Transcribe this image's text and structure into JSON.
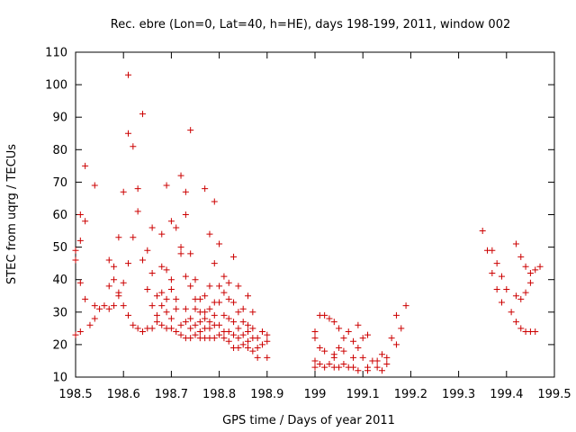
{
  "chart_data": {
    "type": "scatter",
    "title": "Rec. ebre (Lon=0, Lat=40, h=HE), days 198-199, 2011, window 002",
    "xlabel": "GPS time / Days of year 2011",
    "ylabel": "STEC from uqrg / TECUs",
    "xlim": [
      198.5,
      199.5
    ],
    "ylim": [
      10,
      110
    ],
    "xticks": [
      "198.5",
      "198.6",
      "198.7",
      "198.8",
      "198.9",
      "199",
      "199.1",
      "199.2",
      "199.3",
      "199.4",
      "199.5"
    ],
    "yticks": [
      "10",
      "20",
      "30",
      "40",
      "50",
      "60",
      "70",
      "80",
      "90",
      "100",
      "110"
    ],
    "grid": false,
    "marker": "+",
    "color": "#cc0000",
    "points": [
      [
        198.5,
        49
      ],
      [
        198.5,
        46
      ],
      [
        198.5,
        23
      ],
      [
        198.51,
        60
      ],
      [
        198.51,
        52
      ],
      [
        198.51,
        39
      ],
      [
        198.51,
        24
      ],
      [
        198.52,
        75
      ],
      [
        198.52,
        58
      ],
      [
        198.52,
        34
      ],
      [
        198.53,
        26
      ],
      [
        198.54,
        69
      ],
      [
        198.54,
        32
      ],
      [
        198.54,
        28
      ],
      [
        198.55,
        31
      ],
      [
        198.56,
        32
      ],
      [
        198.57,
        46
      ],
      [
        198.57,
        38
      ],
      [
        198.57,
        31
      ],
      [
        198.58,
        44
      ],
      [
        198.58,
        40
      ],
      [
        198.58,
        32
      ],
      [
        198.59,
        53
      ],
      [
        198.59,
        36
      ],
      [
        198.59,
        35
      ],
      [
        198.6,
        67
      ],
      [
        198.6,
        39
      ],
      [
        198.6,
        32
      ],
      [
        198.61,
        103
      ],
      [
        198.61,
        85
      ],
      [
        198.61,
        45
      ],
      [
        198.61,
        29
      ],
      [
        198.62,
        81
      ],
      [
        198.62,
        53
      ],
      [
        198.62,
        26
      ],
      [
        198.63,
        68
      ],
      [
        198.63,
        61
      ],
      [
        198.63,
        25
      ],
      [
        198.64,
        91
      ],
      [
        198.64,
        46
      ],
      [
        198.64,
        24
      ],
      [
        198.65,
        49
      ],
      [
        198.65,
        37
      ],
      [
        198.65,
        25
      ],
      [
        198.66,
        56
      ],
      [
        198.66,
        42
      ],
      [
        198.66,
        32
      ],
      [
        198.66,
        25
      ],
      [
        198.67,
        35
      ],
      [
        198.67,
        29
      ],
      [
        198.67,
        27
      ],
      [
        198.68,
        54
      ],
      [
        198.68,
        44
      ],
      [
        198.68,
        36
      ],
      [
        198.68,
        32
      ],
      [
        198.68,
        26
      ],
      [
        198.69,
        69
      ],
      [
        198.69,
        43
      ],
      [
        198.69,
        34
      ],
      [
        198.69,
        30
      ],
      [
        198.69,
        25
      ],
      [
        198.7,
        58
      ],
      [
        198.7,
        40
      ],
      [
        198.7,
        37
      ],
      [
        198.7,
        28
      ],
      [
        198.7,
        25
      ],
      [
        198.71,
        56
      ],
      [
        198.71,
        34
      ],
      [
        198.71,
        31
      ],
      [
        198.71,
        24
      ],
      [
        198.72,
        72
      ],
      [
        198.72,
        50
      ],
      [
        198.72,
        48
      ],
      [
        198.72,
        26
      ],
      [
        198.72,
        23
      ],
      [
        198.73,
        67
      ],
      [
        198.73,
        60
      ],
      [
        198.73,
        41
      ],
      [
        198.73,
        31
      ],
      [
        198.73,
        27
      ],
      [
        198.73,
        22
      ],
      [
        198.74,
        86
      ],
      [
        198.74,
        48
      ],
      [
        198.74,
        38
      ],
      [
        198.74,
        28
      ],
      [
        198.74,
        25
      ],
      [
        198.74,
        22
      ],
      [
        198.75,
        40
      ],
      [
        198.75,
        34
      ],
      [
        198.75,
        31
      ],
      [
        198.75,
        26
      ],
      [
        198.75,
        23
      ],
      [
        198.76,
        34
      ],
      [
        198.76,
        30
      ],
      [
        198.76,
        27
      ],
      [
        198.76,
        24
      ],
      [
        198.76,
        22
      ],
      [
        198.77,
        68
      ],
      [
        198.77,
        35
      ],
      [
        198.77,
        30
      ],
      [
        198.77,
        28
      ],
      [
        198.77,
        25
      ],
      [
        198.77,
        22
      ],
      [
        198.78,
        54
      ],
      [
        198.78,
        38
      ],
      [
        198.78,
        31
      ],
      [
        198.78,
        27
      ],
      [
        198.78,
        25
      ],
      [
        198.78,
        22
      ],
      [
        198.79,
        64
      ],
      [
        198.79,
        45
      ],
      [
        198.79,
        33
      ],
      [
        198.79,
        29
      ],
      [
        198.79,
        26
      ],
      [
        198.79,
        22
      ],
      [
        198.8,
        51
      ],
      [
        198.8,
        38
      ],
      [
        198.8,
        33
      ],
      [
        198.8,
        26
      ],
      [
        198.8,
        23
      ],
      [
        198.81,
        41
      ],
      [
        198.81,
        36
      ],
      [
        198.81,
        29
      ],
      [
        198.81,
        24
      ],
      [
        198.81,
        22
      ],
      [
        198.82,
        39
      ],
      [
        198.82,
        34
      ],
      [
        198.82,
        28
      ],
      [
        198.82,
        24
      ],
      [
        198.82,
        21
      ],
      [
        198.83,
        47
      ],
      [
        198.83,
        33
      ],
      [
        198.83,
        27
      ],
      [
        198.83,
        23
      ],
      [
        198.83,
        19
      ],
      [
        198.84,
        38
      ],
      [
        198.84,
        30
      ],
      [
        198.84,
        25
      ],
      [
        198.84,
        22
      ],
      [
        198.84,
        19
      ],
      [
        198.85,
        31
      ],
      [
        198.85,
        27
      ],
      [
        198.85,
        23
      ],
      [
        198.85,
        20
      ],
      [
        198.86,
        35
      ],
      [
        198.86,
        26
      ],
      [
        198.86,
        24
      ],
      [
        198.86,
        21
      ],
      [
        198.86,
        19
      ],
      [
        198.87,
        30
      ],
      [
        198.87,
        25
      ],
      [
        198.87,
        22
      ],
      [
        198.87,
        18
      ],
      [
        198.88,
        22
      ],
      [
        198.88,
        19
      ],
      [
        198.88,
        16
      ],
      [
        198.89,
        24
      ],
      [
        198.89,
        20
      ],
      [
        198.9,
        23
      ],
      [
        198.9,
        21
      ],
      [
        198.9,
        16
      ],
      [
        199.0,
        24
      ],
      [
        199.0,
        22
      ],
      [
        199.0,
        15
      ],
      [
        199.0,
        13
      ],
      [
        199.01,
        29
      ],
      [
        199.01,
        19
      ],
      [
        199.01,
        14
      ],
      [
        199.02,
        29
      ],
      [
        199.02,
        18
      ],
      [
        199.02,
        13
      ],
      [
        199.03,
        28
      ],
      [
        199.03,
        14
      ],
      [
        199.04,
        27
      ],
      [
        199.04,
        17
      ],
      [
        199.04,
        16
      ],
      [
        199.04,
        13
      ],
      [
        199.05,
        25
      ],
      [
        199.05,
        19
      ],
      [
        199.05,
        13
      ],
      [
        199.06,
        22
      ],
      [
        199.06,
        18
      ],
      [
        199.06,
        14
      ],
      [
        199.07,
        24
      ],
      [
        199.07,
        13
      ],
      [
        199.08,
        21
      ],
      [
        199.08,
        16
      ],
      [
        199.08,
        13
      ],
      [
        199.09,
        26
      ],
      [
        199.09,
        19
      ],
      [
        199.09,
        12
      ],
      [
        199.1,
        22
      ],
      [
        199.1,
        16
      ],
      [
        199.11,
        23
      ],
      [
        199.11,
        13
      ],
      [
        199.11,
        12
      ],
      [
        199.12,
        15
      ],
      [
        199.13,
        15
      ],
      [
        199.13,
        13
      ],
      [
        199.14,
        17
      ],
      [
        199.14,
        12
      ],
      [
        199.15,
        16
      ],
      [
        199.15,
        14
      ],
      [
        199.16,
        22
      ],
      [
        199.17,
        29
      ],
      [
        199.17,
        20
      ],
      [
        199.18,
        25
      ],
      [
        199.19,
        32
      ],
      [
        199.35,
        55
      ],
      [
        199.36,
        49
      ],
      [
        199.37,
        49
      ],
      [
        199.37,
        42
      ],
      [
        199.38,
        45
      ],
      [
        199.38,
        37
      ],
      [
        199.39,
        41
      ],
      [
        199.39,
        33
      ],
      [
        199.4,
        37
      ],
      [
        199.41,
        30
      ],
      [
        199.42,
        51
      ],
      [
        199.42,
        35
      ],
      [
        199.42,
        27
      ],
      [
        199.43,
        47
      ],
      [
        199.43,
        34
      ],
      [
        199.43,
        25
      ],
      [
        199.44,
        44
      ],
      [
        199.44,
        36
      ],
      [
        199.44,
        24
      ],
      [
        199.45,
        42
      ],
      [
        199.45,
        39
      ],
      [
        199.45,
        24
      ],
      [
        199.46,
        43
      ],
      [
        199.46,
        24
      ],
      [
        199.47,
        44
      ]
    ]
  }
}
